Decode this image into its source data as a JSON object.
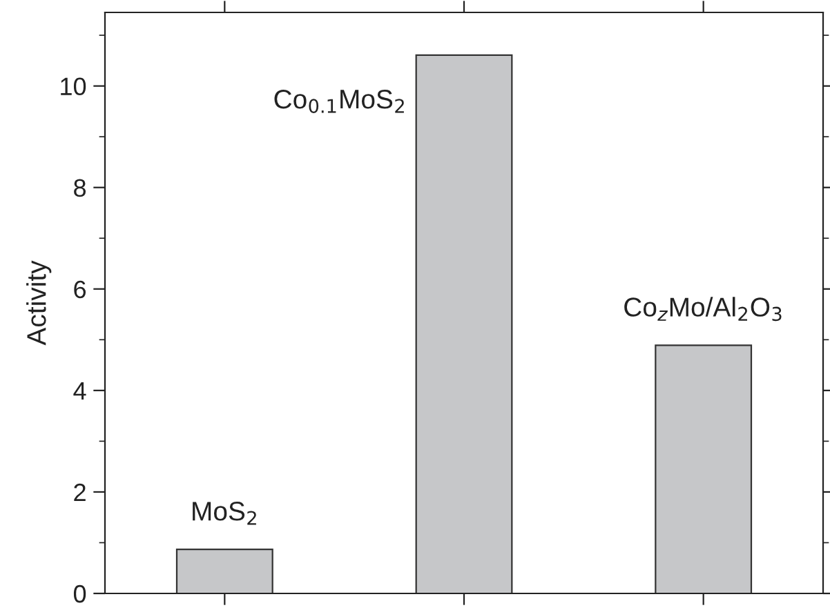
{
  "chart_data": {
    "type": "bar",
    "ylabel": "Activity",
    "categories": [
      null,
      null,
      null
    ],
    "values": [
      0.87,
      10.61,
      4.89
    ],
    "color": "#c6c7c9",
    "ylim": [
      0,
      11.45
    ],
    "yticks": [
      0,
      2,
      4,
      6,
      8,
      10
    ],
    "grid": false,
    "legend": false,
    "annotations": [
      {
        "text": "MoS$_{2}$",
        "y": 0.87
      },
      "Co$_{0.1}$MoS$_{2}$",
      {
        "text": "Co$_{z}$Mo/Al$_{2}$O$_{3}$",
        "y": 4.89
      }
    ]
  }
}
